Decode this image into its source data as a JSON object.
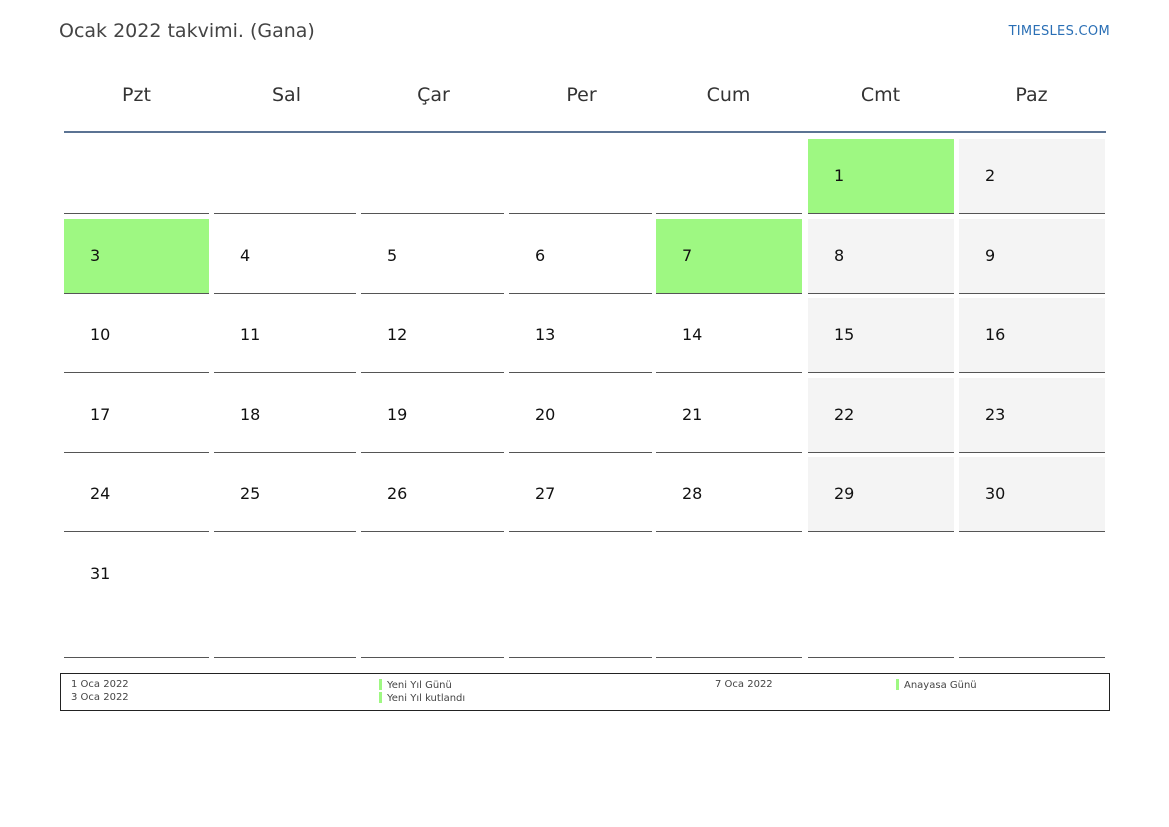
{
  "title": "Ocak 2022 takvimi. (Gana)",
  "brand": "TIMESLES.COM",
  "colors": {
    "holiday": "#9ef882",
    "weekend": "#f4f4f4",
    "header_rule": "#5b7393",
    "brand": "#2a6fb5"
  },
  "weekdays": [
    "Pzt",
    "Sal",
    "Çar",
    "Per",
    "Cum",
    "Cmt",
    "Paz"
  ],
  "weeks": [
    [
      null,
      null,
      null,
      null,
      null,
      "1",
      "2"
    ],
    [
      "3",
      "4",
      "5",
      "6",
      "7",
      "8",
      "9"
    ],
    [
      "10",
      "11",
      "12",
      "13",
      "14",
      "15",
      "16"
    ],
    [
      "17",
      "18",
      "19",
      "20",
      "21",
      "22",
      "23"
    ],
    [
      "24",
      "25",
      "26",
      "27",
      "28",
      "29",
      "30"
    ],
    [
      "31",
      null,
      null,
      null,
      null,
      null,
      null
    ]
  ],
  "holiday_days": [
    "1",
    "3",
    "7"
  ],
  "legend": [
    {
      "date": "1 Oca 2022",
      "name": "Yeni Yıl Günü"
    },
    {
      "date": "3 Oca 2022",
      "name": "Yeni Yıl kutlandı"
    },
    {
      "date": "7 Oca 2022",
      "name": "Anayasa Günü"
    }
  ]
}
